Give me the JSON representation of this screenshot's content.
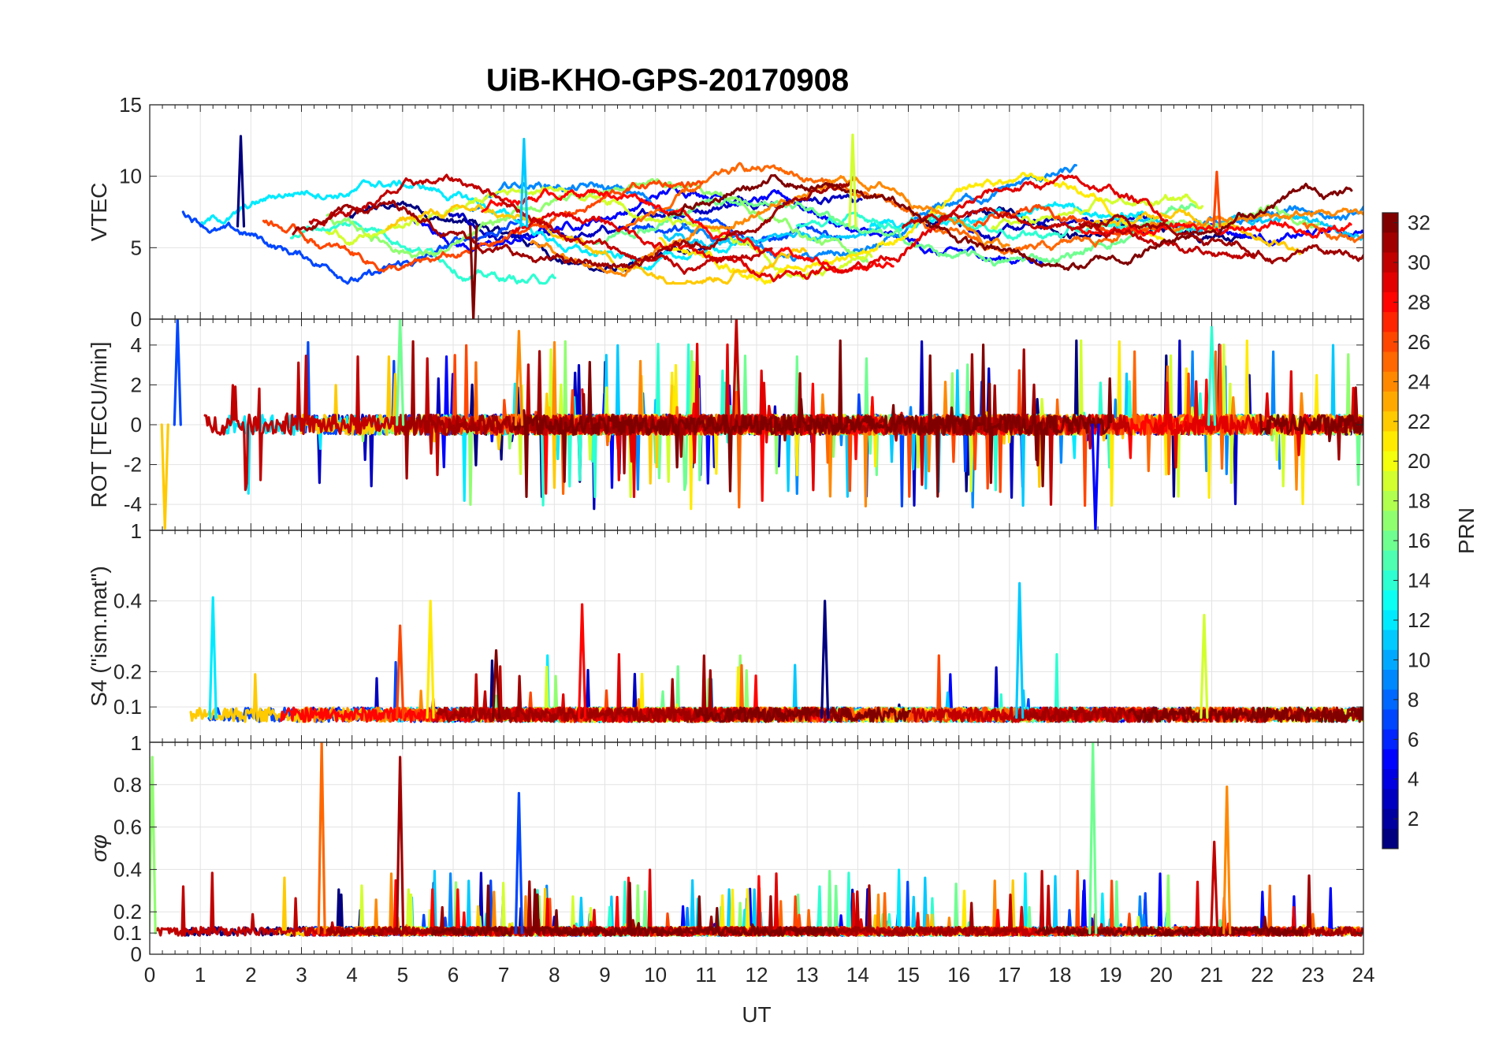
{
  "chart_data": {
    "type": "line",
    "title": "UiB-KHO-GPS-20170908",
    "xlabel": "UT",
    "xlim": [
      0,
      24
    ],
    "x_ticks": [
      "0",
      "1",
      "2",
      "3",
      "4",
      "5",
      "6",
      "7",
      "8",
      "9",
      "10",
      "11",
      "12",
      "13",
      "14",
      "15",
      "16",
      "17",
      "18",
      "19",
      "20",
      "21",
      "22",
      "23",
      "24"
    ],
    "panels": [
      {
        "id": "vtec",
        "ylabel": "VTEC",
        "ylim": [
          0,
          15
        ],
        "y_ticks": [
          "0",
          "5",
          "10",
          "15"
        ],
        "y_tick_values": [
          0,
          5,
          10,
          15
        ],
        "baseline": 6.5,
        "variability": 2.4,
        "spike_prob": 0.004,
        "events": [
          [
            1.8,
            12.8
          ],
          [
            7.4,
            12.6
          ],
          [
            13.9,
            12.9
          ],
          [
            21.1,
            10.3
          ],
          [
            6.4,
            0.0
          ]
        ]
      },
      {
        "id": "rot",
        "ylabel": "ROT [TECU/min]",
        "ylim": [
          -5.3,
          5.3
        ],
        "y_ticks": [
          "-4",
          "-2",
          "0",
          "2",
          "4"
        ],
        "y_tick_values": [
          -4,
          -2,
          0,
          2,
          4
        ],
        "baseline": 0,
        "variability": 0.5,
        "spike_prob": 0.03,
        "events": [
          [
            0.55,
            5.3
          ],
          [
            4.95,
            5.3
          ],
          [
            7.3,
            4.7
          ],
          [
            11.6,
            5.3
          ],
          [
            18.7,
            -5.3
          ],
          [
            21.0,
            4.9
          ],
          [
            0.3,
            -5.2
          ]
        ]
      },
      {
        "id": "s4",
        "ylabel": "S4 (\"ism.mat\")",
        "ylim": [
          0,
          0.6
        ],
        "y_ticks": [
          "0.1",
          "0.2",
          "0.4"
        ],
        "y_tick_values": [
          0.1,
          0.2,
          0.4
        ],
        "top_label": "1",
        "baseline": 0.07,
        "variability": 0.02,
        "spike_prob": 0.006,
        "events": [
          [
            1.25,
            0.41
          ],
          [
            5.55,
            0.4
          ],
          [
            8.55,
            0.39
          ],
          [
            13.35,
            0.4
          ],
          [
            17.2,
            0.45
          ],
          [
            20.85,
            0.36
          ],
          [
            4.95,
            0.33
          ],
          [
            6.85,
            0.26
          ]
        ]
      },
      {
        "id": "sigma_phi",
        "ylabel": "σφ",
        "ylim": [
          0,
          1
        ],
        "y_ticks": [
          "0",
          "0.1",
          "0.2",
          "0.4",
          "0.6",
          "0.8"
        ],
        "y_tick_values": [
          0,
          0.1,
          0.2,
          0.4,
          0.6,
          0.8
        ],
        "top_label": "1",
        "baseline": 0.1,
        "variability": 0.02,
        "spike_prob": 0.02,
        "events": [
          [
            0.05,
            0.93
          ],
          [
            3.4,
            1.0
          ],
          [
            4.95,
            0.93
          ],
          [
            7.3,
            0.76
          ],
          [
            18.65,
            1.0
          ],
          [
            21.3,
            0.79
          ],
          [
            21.05,
            0.53
          ]
        ]
      }
    ],
    "colorbar": {
      "label": "PRN",
      "range": [
        1,
        32
      ],
      "ticks": [
        "2",
        "4",
        "6",
        "8",
        "10",
        "12",
        "14",
        "16",
        "18",
        "20",
        "22",
        "24",
        "26",
        "28",
        "30",
        "32"
      ],
      "tick_values": [
        2,
        4,
        6,
        8,
        10,
        12,
        14,
        16,
        18,
        20,
        22,
        24,
        26,
        28,
        30,
        32
      ]
    },
    "series_prns": [
      1,
      3,
      5,
      7,
      9,
      11,
      12,
      14,
      16,
      17,
      19,
      21,
      22,
      24,
      25,
      26,
      28,
      29,
      30,
      31,
      32
    ]
  }
}
